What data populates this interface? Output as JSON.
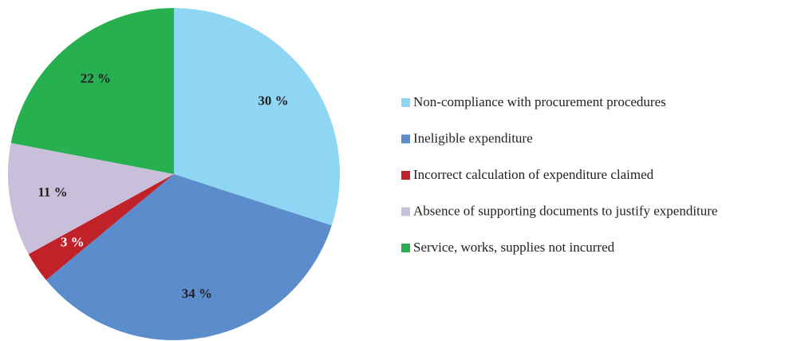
{
  "chart_data": {
    "type": "pie",
    "categories": [
      "Non-compliance with procurement procedures",
      "Ineligible expenditure",
      "Incorrect calculation of expenditure claimed",
      "Absence of supporting documents to justify expenditure",
      "Service, works, supplies not incurred"
    ],
    "values": [
      30,
      34,
      3,
      11,
      22
    ],
    "value_labels": [
      "30 %",
      "34 %",
      "3 %",
      "11 %",
      "22 %"
    ],
    "colors": [
      "#8fd6f4",
      "#5b8ccb",
      "#c0222a",
      "#c9bfda",
      "#26b04f"
    ],
    "legend": "right"
  }
}
